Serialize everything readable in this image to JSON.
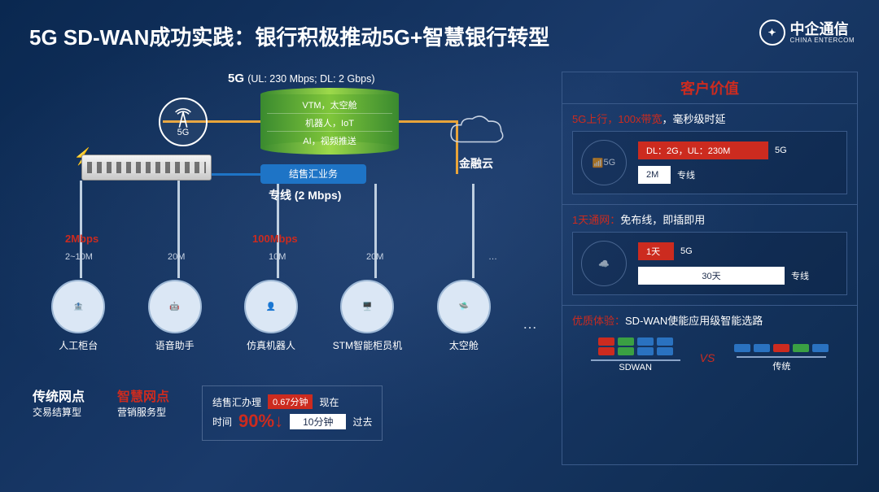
{
  "title": "5G SD-WAN成功实践：银行积极推动5G+智慧银行转型",
  "logo": {
    "cn": "中企通信",
    "en": "CHINA ENTERCOM"
  },
  "diagram": {
    "tower_label": "5G",
    "fiveg_label": "5G",
    "fiveg_spec": "(UL: 230 Mbps; DL: 2 Gbps)",
    "cylinder_rows": [
      "VTM，太空舱",
      "机器人，IoT",
      "AI，视频推送"
    ],
    "cloud_label": "金融云",
    "blue_pill": "结售汇业务",
    "leased_line": "专线 (2 Mbps)",
    "bw_red_left": "2Mbps",
    "bw_red_right": "100Mbps",
    "bw_small": [
      "2~10M",
      "20M",
      "10M",
      "20M",
      "…"
    ],
    "endpoints": [
      {
        "label": "人工柜台"
      },
      {
        "label": "语音助手"
      },
      {
        "label": "仿真机器人"
      },
      {
        "label": "STM智能柜员机"
      },
      {
        "label": "太空舱"
      }
    ],
    "compare": {
      "left_title": "传统网点",
      "left_sub": "交易结算型",
      "right_title": "智慧网点",
      "right_sub": "营销服务型",
      "box_top_label": "结售汇办理",
      "box_top_badge": "0.67分钟",
      "box_top_note": "现在",
      "box_bot_label": "时间",
      "box_bot_big": "90%↓",
      "box_bot_value": "10分钟",
      "box_bot_note": "过去"
    },
    "colors": {
      "orange_wire": "#e8a43a",
      "blue_wire": "#1e74c6",
      "red": "#cc2b1f",
      "green_a": "#3a8a2f",
      "green_b": "#7fc63a"
    }
  },
  "value": {
    "title": "客户价值",
    "sec1": {
      "head_red": "5G上行，100x带宽",
      "head_rest": "，毫秒级时延",
      "bar1_red": "DL：2G，UL：230M",
      "bar1_tag": "5G",
      "bar2_white": "2M",
      "bar2_tag": "专线",
      "icon": "5G"
    },
    "sec2": {
      "head_red": "1天通网：",
      "head_rest": "免布线，即插即用",
      "bar1_red": "1天",
      "bar1_tag": "5G",
      "bar2_white": "30天",
      "bar2_tag": "专线"
    },
    "sec3": {
      "head_red": "优质体验：",
      "head_rest": "SD-WAN使能应用级智能选路",
      "left_label": "SDWAN",
      "right_label": "传统",
      "vs": "VS",
      "left_cars": [
        [
          "#cc2b1f",
          "#3aa043",
          "#2a72c0",
          "#2a72c0"
        ],
        [
          "#cc2b1f",
          "#3aa043",
          "#2a72c0",
          "#2a72c0"
        ]
      ],
      "right_cars": [
        [
          "#2a72c0",
          "#2a72c0",
          "#cc2b1f",
          "#3aa043",
          "#2a72c0"
        ]
      ]
    }
  }
}
